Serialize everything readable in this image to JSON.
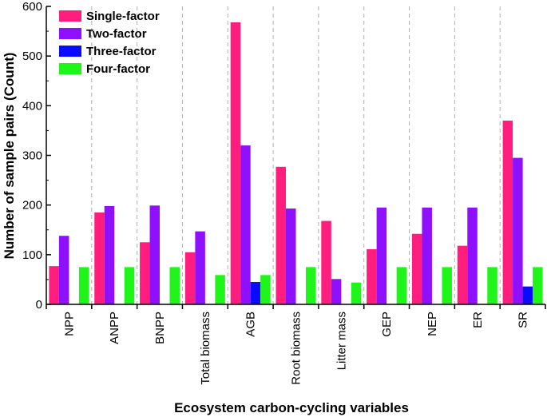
{
  "chart_data": {
    "type": "bar",
    "title": "",
    "xlabel": "Ecosystem carbon-cycling variables",
    "ylabel": "Number of sample pairs (Count)",
    "ylim": [
      0,
      600
    ],
    "yticks": [
      0,
      100,
      200,
      300,
      400,
      500,
      600
    ],
    "categories": [
      "NPP",
      "ANPP",
      "BNPP",
      "Total biomass",
      "AGB",
      "Root biomass",
      "Litter mass",
      "GEP",
      "NEP",
      "ER",
      "SR"
    ],
    "series": [
      {
        "name": "Single-factor",
        "color": "#ff1e7d",
        "values": [
          77,
          185,
          125,
          105,
          568,
          277,
          168,
          111,
          142,
          118,
          370
        ]
      },
      {
        "name": "Two-factor",
        "color": "#8f0fff",
        "values": [
          138,
          198,
          199,
          147,
          320,
          193,
          51,
          195,
          195,
          195,
          295
        ]
      },
      {
        "name": "Three-factor",
        "color": "#0a0aff",
        "values": [
          0,
          0,
          0,
          0,
          45,
          0,
          0,
          0,
          0,
          0,
          36
        ]
      },
      {
        "name": "Four-factor",
        "color": "#1ff51a",
        "values": [
          75,
          75,
          75,
          59,
          59,
          75,
          44,
          75,
          75,
          75,
          75
        ]
      }
    ],
    "legend_position": "top-left",
    "grid": "dashed vertical separators between categories"
  }
}
